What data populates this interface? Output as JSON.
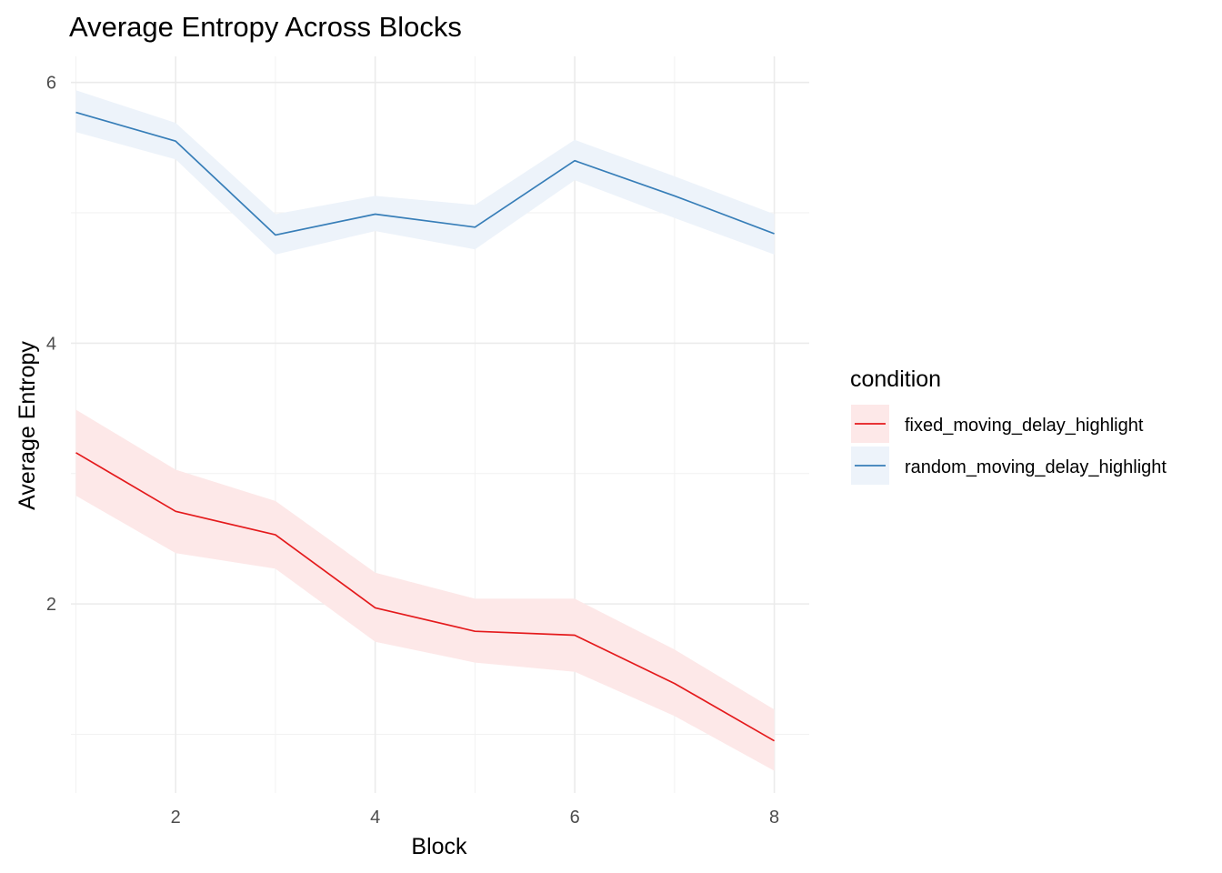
{
  "chart_data": {
    "type": "line",
    "title": "Average Entropy Across Blocks",
    "xlabel": "Block",
    "ylabel": "Average Entropy",
    "x": [
      1,
      2,
      3,
      4,
      5,
      6,
      7,
      8
    ],
    "xlim": [
      0.95,
      8.35
    ],
    "ylim": [
      0.55,
      6.2
    ],
    "xticks": [
      2,
      4,
      6,
      8
    ],
    "yticks": [
      2,
      4,
      6
    ],
    "grid": true,
    "legend": {
      "title": "condition",
      "position": "right"
    },
    "series": [
      {
        "name": "fixed_moving_delay_highlight",
        "color": "#e41a1c",
        "ribbon_color": "#fde8e8",
        "values": [
          3.16,
          2.71,
          2.53,
          1.97,
          1.79,
          1.76,
          1.39,
          0.95
        ],
        "lower": [
          2.83,
          2.39,
          2.27,
          1.71,
          1.55,
          1.48,
          1.14,
          0.72
        ],
        "upper": [
          3.49,
          3.03,
          2.79,
          2.24,
          2.04,
          2.04,
          1.65,
          1.19
        ]
      },
      {
        "name": "random_moving_delay_highlight",
        "color": "#377eb8",
        "ribbon_color": "#edf3fa",
        "values": [
          5.77,
          5.55,
          4.83,
          4.99,
          4.89,
          5.4,
          5.13,
          4.84
        ],
        "lower": [
          5.62,
          5.41,
          4.68,
          4.86,
          4.72,
          5.25,
          4.96,
          4.68
        ],
        "upper": [
          5.94,
          5.69,
          4.99,
          5.13,
          5.06,
          5.56,
          5.28,
          4.99
        ]
      }
    ]
  }
}
